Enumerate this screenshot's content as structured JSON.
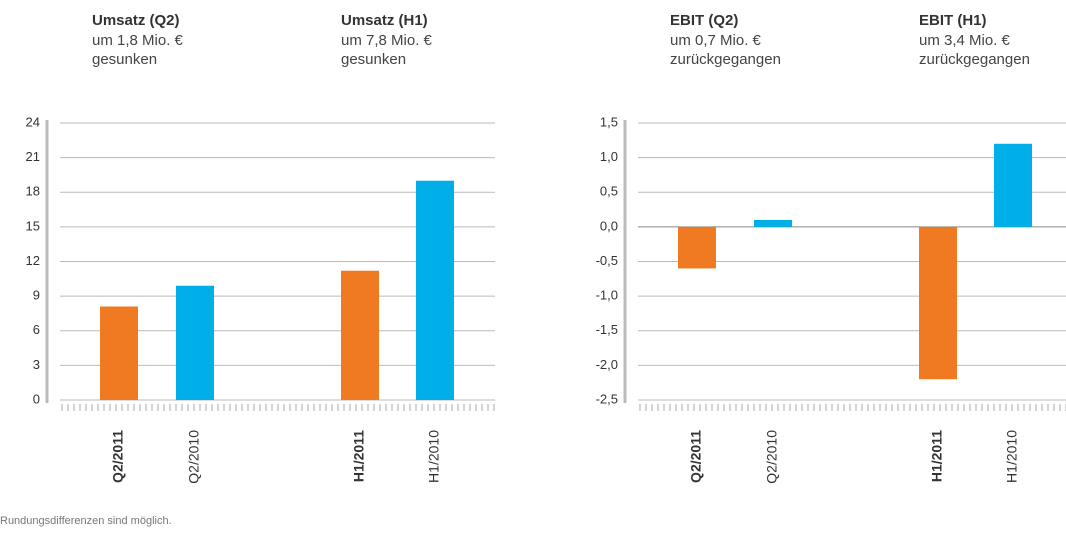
{
  "chart_data": [
    {
      "type": "bar",
      "annotations": [
        {
          "title": "Umsatz (Q2)",
          "lines": [
            "um 1,8 Mio. €",
            "gesunken"
          ]
        },
        {
          "title": "Umsatz (H1)",
          "lines": [
            "um 7,8 Mio. €",
            "gesunken"
          ]
        }
      ],
      "categories": [
        "Q2/2011",
        "Q2/2010",
        "H1/2011",
        "H1/2010"
      ],
      "bold": [
        true,
        false,
        true,
        false
      ],
      "values": [
        8.1,
        9.9,
        11.2,
        19.0
      ],
      "colors": [
        "#f07a22",
        "#00aee8",
        "#f07a22",
        "#00aee8"
      ],
      "ylim": [
        0,
        24
      ],
      "yticks": [
        0,
        3,
        6,
        9,
        12,
        15,
        18,
        21,
        24
      ],
      "grid": true
    },
    {
      "type": "bar",
      "annotations": [
        {
          "title": "EBIT (Q2)",
          "lines": [
            "um 0,7 Mio. €",
            "zurückgegangen"
          ]
        },
        {
          "title": "EBIT (H1)",
          "lines": [
            "um 3,4 Mio. €",
            "zurückgegangen"
          ]
        }
      ],
      "categories": [
        "Q2/2011",
        "Q2/2010",
        "H1/2011",
        "H1/2010"
      ],
      "bold": [
        true,
        false,
        true,
        false
      ],
      "values": [
        -0.6,
        0.1,
        -2.2,
        1.2
      ],
      "colors": [
        "#f07a22",
        "#00aee8",
        "#f07a22",
        "#00aee8"
      ],
      "ylim": [
        -2.5,
        1.5
      ],
      "yticks": [
        {
          "value": -2.5,
          "label": "-2,5"
        },
        {
          "value": -2,
          "label": "-2,0"
        },
        {
          "value": -1.5,
          "label": "-1,5"
        },
        {
          "value": -1,
          "label": "-1,0"
        },
        {
          "value": -0.5,
          "label": "-0,5"
        },
        {
          "value": 0,
          "label": "0,0"
        },
        {
          "value": 0.5,
          "label": "0,5"
        },
        {
          "value": 1,
          "label": "1,0"
        },
        {
          "value": 1.5,
          "label": "1,5"
        }
      ],
      "grid": true
    }
  ],
  "footnote": "Rundungsdifferenzen sind möglich."
}
